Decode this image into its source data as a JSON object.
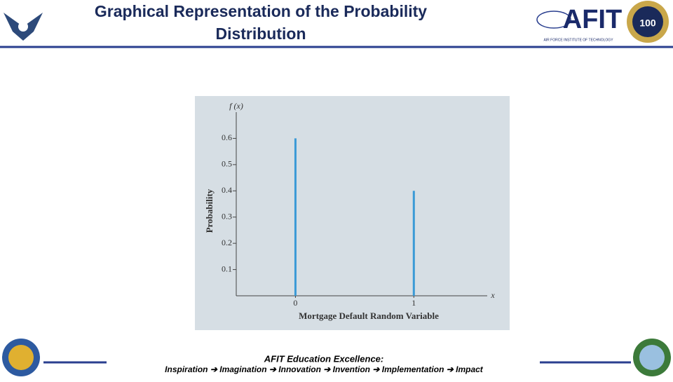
{
  "header": {
    "title": "Graphical Representation of the Probability Distribution"
  },
  "logos": {
    "afit": "AFIT",
    "afit_subtitle": "AIR FORCE INSTITUTE OF TECHNOLOGY",
    "badge": "100"
  },
  "footer": {
    "line1": "AFIT Education Excellence:",
    "line2": "Inspiration ➔ Imagination ➔ Innovation ➔ Invention ➔ Implementation ➔ Impact"
  },
  "chart_data": {
    "type": "stem",
    "x_label": "Mortgage Default Random Variable",
    "y_label": "Probability",
    "y_axis_symbol": "f (x)",
    "x_axis_symbol": "x",
    "x": [
      0,
      1
    ],
    "values": [
      0.6,
      0.4
    ],
    "color": "#3b9ad6",
    "xlim": [
      -0.5,
      1.62
    ],
    "xticks": [
      0,
      1
    ],
    "ylim": [
      0,
      0.7
    ],
    "yticks": [
      0.1,
      0.2,
      0.3,
      0.4,
      0.5,
      0.6
    ]
  }
}
